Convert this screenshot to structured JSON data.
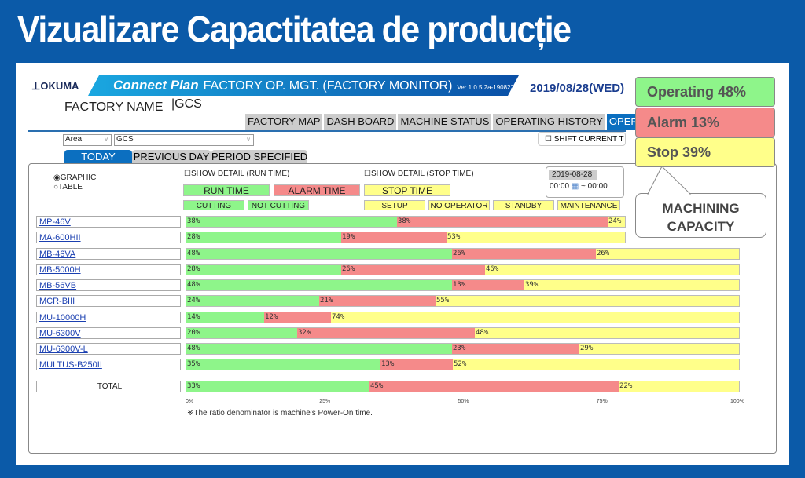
{
  "title": "Vizualizare Capactitatea de producție",
  "header": {
    "logo": "OKUMA",
    "brand": "Connect Plan",
    "app": "FACTORY OP. MGT. (FACTORY MONITOR)",
    "version": "Ver 1.0.5.2a-190822",
    "date": "2019/08/28(WED)",
    "factory_label": "FACTORY NAME",
    "factory_value": "GCS"
  },
  "nav": {
    "tabs": [
      "FACTORY MAP",
      "DASH BOARD",
      "MACHINE STATUS",
      "OPERATING HISTORY",
      "OPERATI"
    ]
  },
  "filters": {
    "area": "Area",
    "group": "GCS",
    "shift": "☐ SHIFT CURRENT T"
  },
  "period_tabs": [
    "TODAY",
    "PREVIOUS DAY",
    "PERIOD SPECIFIED"
  ],
  "view": {
    "graphic": "◉GRAPHIC",
    "table": "○TABLE",
    "detail_run": "☐SHOW DETAIL (RUN TIME)",
    "detail_stop": "☐SHOW DETAIL (STOP TIME)",
    "date": "2019-08-28",
    "time_from": "00:00",
    "tilde": "~",
    "time_to": "00:00"
  },
  "legend": {
    "run": "RUN TIME",
    "alarm": "ALARM TIME",
    "stop": "STOP TIME",
    "cutting": "CUTTING",
    "not_cutting": "NOT CUTTING",
    "setup": "SETUP",
    "no_operator": "NO OPERATOR",
    "standby": "STANDBY",
    "maintenance": "MAINTENANCE"
  },
  "colors": {
    "run": "#8ef58a",
    "alarm": "#f58a8a",
    "stop": "#ffff8a"
  },
  "chart_data": {
    "type": "bar",
    "stacked": true,
    "orientation": "horizontal",
    "xlim": [
      0,
      100
    ],
    "ticks": [
      "0%",
      "25%",
      "50%",
      "75%",
      "100%"
    ],
    "categories": [
      "MP-46V",
      "MA-600HII",
      "MB-46VA",
      "MB-5000H",
      "MB-56VB",
      "MCR-BIII",
      "MU-10000H",
      "MU-6300V",
      "MU-6300V-L",
      "MULTUS-B250II",
      "TOTAL"
    ],
    "series": [
      {
        "name": "RUN TIME",
        "values": [
          38,
          28,
          48,
          28,
          48,
          24,
          14,
          20,
          48,
          35,
          33
        ]
      },
      {
        "name": "ALARM TIME",
        "values": [
          38,
          19,
          26,
          26,
          13,
          21,
          12,
          32,
          23,
          13,
          45
        ]
      },
      {
        "name": "STOP TIME",
        "values": [
          24,
          53,
          26,
          46,
          39,
          55,
          74,
          48,
          29,
          52,
          22
        ]
      }
    ]
  },
  "note": "※The ratio denominator is machine's Power-On time.",
  "callouts": {
    "operating": "Operating 48%",
    "alarm": "Alarm 13%",
    "stop": "Stop 39%",
    "capacity": "MACHINING CAPACITY"
  }
}
